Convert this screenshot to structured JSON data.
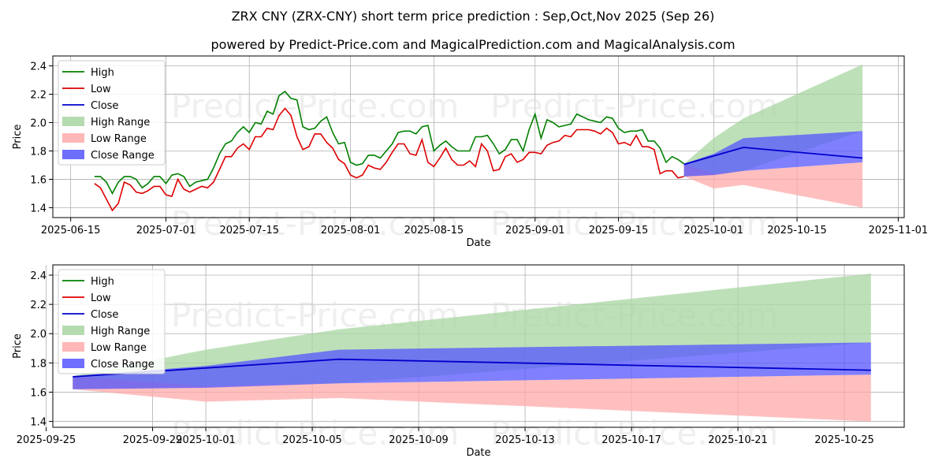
{
  "title": "ZRX CNY (ZRX-CNY) short term price prediction : Sep,Oct,Nov 2025 (Sep 26)",
  "subtitle": "powered by Predict-Price.com and MagicalPrediction.com and MagicalAnalysis.com",
  "watermark": "Predict-Price.com",
  "colors": {
    "high": "#008000",
    "low": "#dd0000",
    "close": "#0000cc",
    "high_range": "#a8d5a2",
    "low_range": "#ffaaaa",
    "close_range": "#5555ff"
  },
  "chart_data": [
    {
      "type": "line",
      "name": "history-and-forecast",
      "xlabel": "Date",
      "ylabel": "Price",
      "x_range": [
        "2025-06-12",
        "2025-11-02"
      ],
      "ylim": [
        1.33,
        2.47
      ],
      "x_ticks": [
        "2025-06-15",
        "2025-07-01",
        "2025-07-15",
        "2025-08-01",
        "2025-08-15",
        "2025-09-01",
        "2025-09-15",
        "2025-10-01",
        "2025-10-15",
        "2025-11-01"
      ],
      "y_ticks": [
        "1.4",
        "1.6",
        "1.8",
        "2.0",
        "2.2",
        "2.4"
      ],
      "legend": [
        "High",
        "Low",
        "Close",
        "High Range",
        "Low Range",
        "Close Range"
      ],
      "legend_position": "upper-left",
      "grid": true,
      "history_start": "2025-06-19",
      "history_high": [
        1.62,
        1.62,
        1.58,
        1.5,
        1.58,
        1.62,
        1.62,
        1.6,
        1.54,
        1.57,
        1.62,
        1.62,
        1.57,
        1.63,
        1.64,
        1.62,
        1.55,
        1.58,
        1.59,
        1.6,
        1.68,
        1.78,
        1.85,
        1.87,
        1.93,
        1.97,
        1.93,
        2.0,
        1.99,
        2.08,
        2.06,
        2.19,
        2.22,
        2.17,
        2.16,
        1.97,
        1.95,
        1.96,
        2.01,
        2.04,
        1.93,
        1.85,
        1.86,
        1.72,
        1.7,
        1.71,
        1.77,
        1.77,
        1.75,
        1.8,
        1.85,
        1.93,
        1.94,
        1.94,
        1.92,
        1.97,
        1.98,
        1.8,
        1.84,
        1.87,
        1.83,
        1.8,
        1.8,
        1.8,
        1.9,
        1.9,
        1.91,
        1.85,
        1.78,
        1.81,
        1.88,
        1.88,
        1.8,
        1.95,
        2.06,
        1.89,
        2.02,
        2.0,
        1.97,
        1.98,
        1.99,
        2.06,
        2.04,
        2.02,
        2.01,
        2.0,
        2.04,
        2.03,
        1.96,
        1.93,
        1.94,
        1.94,
        1.95,
        1.87,
        1.87,
        1.82,
        1.72,
        1.76,
        1.74,
        1.71
      ],
      "history_low": [
        1.57,
        1.54,
        1.46,
        1.38,
        1.43,
        1.58,
        1.56,
        1.51,
        1.5,
        1.52,
        1.55,
        1.55,
        1.49,
        1.48,
        1.6,
        1.53,
        1.51,
        1.53,
        1.55,
        1.54,
        1.58,
        1.67,
        1.76,
        1.76,
        1.82,
        1.85,
        1.81,
        1.9,
        1.9,
        1.96,
        1.95,
        2.05,
        2.1,
        2.05,
        1.9,
        1.81,
        1.83,
        1.92,
        1.92,
        1.86,
        1.82,
        1.74,
        1.71,
        1.63,
        1.61,
        1.63,
        1.7,
        1.68,
        1.67,
        1.72,
        1.79,
        1.85,
        1.85,
        1.78,
        1.77,
        1.88,
        1.72,
        1.69,
        1.75,
        1.82,
        1.74,
        1.7,
        1.7,
        1.73,
        1.69,
        1.85,
        1.8,
        1.66,
        1.67,
        1.76,
        1.78,
        1.72,
        1.74,
        1.79,
        1.79,
        1.78,
        1.84,
        1.86,
        1.87,
        1.91,
        1.9,
        1.95,
        1.95,
        1.95,
        1.94,
        1.92,
        1.96,
        1.93,
        1.85,
        1.86,
        1.84,
        1.91,
        1.83,
        1.83,
        1.81,
        1.64,
        1.66,
        1.66,
        1.61,
        1.62
      ],
      "forecast_dates": [
        "2025-09-26",
        "2025-10-01",
        "2025-10-06",
        "2025-10-26"
      ],
      "forecast_close": [
        1.705,
        1.765,
        1.825,
        1.75
      ],
      "high_range_upper": [
        1.71,
        1.89,
        2.03,
        2.41
      ],
      "high_range_lower": [
        1.62,
        1.64,
        1.66,
        1.94
      ],
      "low_range_upper": [
        1.71,
        1.64,
        1.66,
        1.72
      ],
      "low_range_lower": [
        1.62,
        1.535,
        1.56,
        1.4
      ],
      "close_range_upper": [
        1.71,
        1.78,
        1.89,
        1.94
      ],
      "close_range_lower": [
        1.62,
        1.63,
        1.66,
        1.72
      ]
    },
    {
      "type": "line",
      "name": "forecast-zoom",
      "xlabel": "Date",
      "ylabel": "Price",
      "x_range": [
        "2025-09-25.25",
        "2025-10-27.25"
      ],
      "ylim": [
        1.36,
        2.47
      ],
      "x_ticks": [
        "2025-09-25",
        "2025-09-29",
        "2025-10-01",
        "2025-10-05",
        "2025-10-09",
        "2025-10-13",
        "2025-10-17",
        "2025-10-21",
        "2025-10-25"
      ],
      "y_ticks": [
        "1.4",
        "1.6",
        "1.8",
        "2.0",
        "2.2",
        "2.4"
      ],
      "legend": [
        "High",
        "Low",
        "Close",
        "High Range",
        "Low Range",
        "Close Range"
      ],
      "legend_position": "upper-left",
      "grid": true,
      "forecast_dates": [
        "2025-09-26",
        "2025-10-01",
        "2025-10-06",
        "2025-10-26"
      ],
      "forecast_close": [
        1.705,
        1.765,
        1.825,
        1.75
      ]
    }
  ]
}
